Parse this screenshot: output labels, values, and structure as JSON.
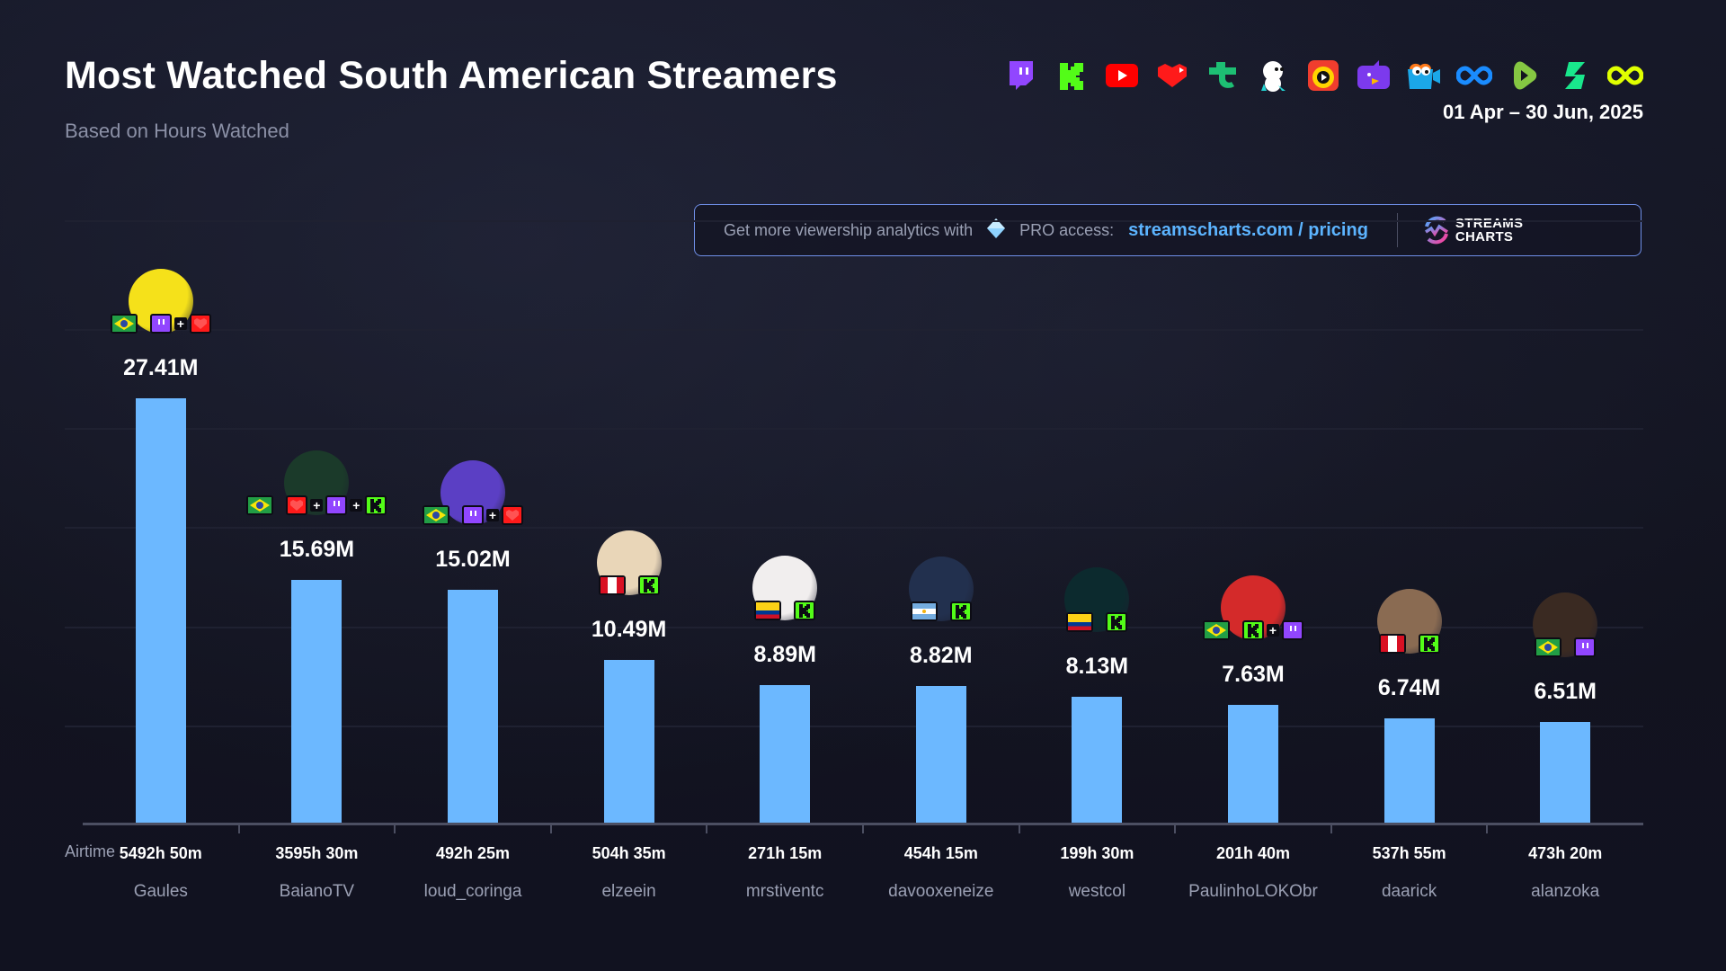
{
  "header": {
    "title": "Most Watched South American Streamers",
    "subtitle": "Based on Hours Watched",
    "date_range": "01 Apr – 30 Jun, 2025",
    "platform_icons": [
      "twitch-icon",
      "kick-icon",
      "youtube-icon",
      "vk-play-icon",
      "trovo-icon",
      "bigo-icon",
      "nimo-icon",
      "afreeca-icon",
      "chzzk-icon",
      "sooplive-icon",
      "rumble-icon",
      "zhanqi-icon",
      "infinity-icon"
    ]
  },
  "promo": {
    "text": "Get more viewership analytics with",
    "pro_text": "PRO access:",
    "link": "streamscharts.com / pricing",
    "logo_line1": "STREAMS",
    "logo_line2": "CHARTS"
  },
  "axis": {
    "airtime_label": "Airtime"
  },
  "colors": {
    "bar": "#6cb8ff",
    "link": "#5cb4ff",
    "background": "#12131f"
  },
  "chart_data": {
    "type": "bar",
    "title": "Most Watched South American Streamers",
    "subtitle": "Based on Hours Watched",
    "xlabel": "",
    "ylabel": "Hours Watched",
    "ylim": [
      0,
      39
    ],
    "grid": true,
    "categories": [
      "Gaules",
      "BaianoTV",
      "loud_coringa",
      "elzeein",
      "mrstiventc",
      "davooxeneize",
      "westcol",
      "PaulinhoLOKObr",
      "daarick",
      "alanzoka"
    ],
    "values": [
      27.41,
      15.69,
      15.02,
      10.49,
      8.89,
      8.82,
      8.13,
      7.63,
      6.74,
      6.51
    ],
    "value_labels": [
      "27.41M",
      "15.69M",
      "15.02M",
      "10.49M",
      "8.89M",
      "8.82M",
      "8.13M",
      "7.63M",
      "6.74M",
      "6.51M"
    ],
    "airtime": [
      "5492h 50m",
      "3595h 30m",
      "492h 25m",
      "504h 35m",
      "271h 15m",
      "454h 15m",
      "199h 30m",
      "201h 40m",
      "537h 55m",
      "473h 20m"
    ],
    "countries": [
      "brazil",
      "brazil",
      "brazil",
      "peru",
      "colombia",
      "argentina",
      "colombia",
      "brazil",
      "peru",
      "brazil"
    ],
    "platforms": [
      [
        "twitch",
        "vkplay"
      ],
      [
        "vkplay",
        "twitch",
        "kick"
      ],
      [
        "twitch",
        "vkplay"
      ],
      [
        "kick"
      ],
      [
        "kick"
      ],
      [
        "kick"
      ],
      [
        "kick"
      ],
      [
        "kick",
        "twitch"
      ],
      [
        "kick"
      ],
      [
        "twitch"
      ]
    ],
    "avatar_colors": [
      "#f5e11a",
      "#1b3a2a",
      "#5b3fc4",
      "#e9d6b8",
      "#f1eeee",
      "#22304e",
      "#0c2a2e",
      "#d42a2a",
      "#8a6b52",
      "#3a2a22"
    ]
  }
}
